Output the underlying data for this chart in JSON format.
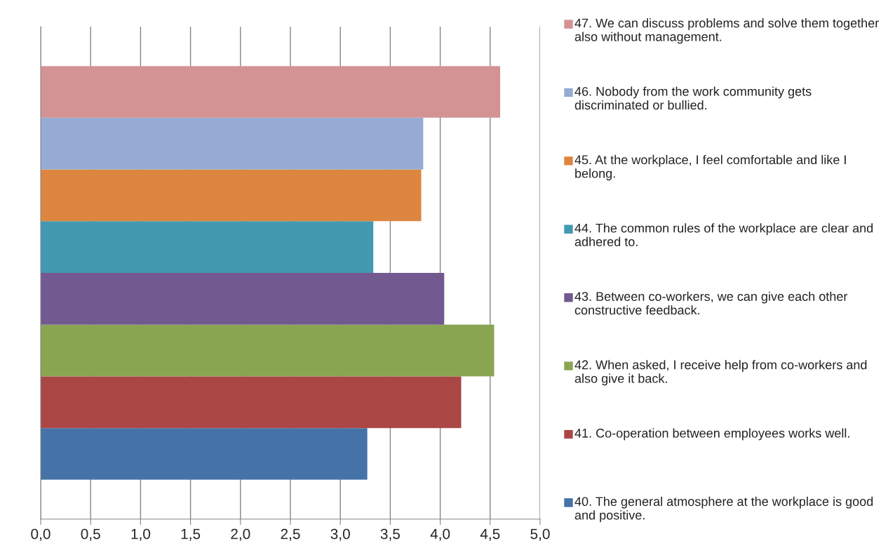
{
  "chart_data": {
    "type": "bar",
    "orientation": "horizontal",
    "categories": [
      null
    ],
    "series": [
      {
        "name": "40. The general atmosphere at the workplace is good and positive.",
        "color": "#4573a7",
        "values": [
          3.27
        ]
      },
      {
        "name": "41. Co-operation between employees works well.",
        "color": "#aa4745",
        "values": [
          4.21
        ]
      },
      {
        "name": "42. When asked, I receive help from co-workers and also give it back.",
        "color": "#89a552",
        "values": [
          4.54
        ]
      },
      {
        "name": "43. Between co-workers, we can give each other constructive feedback.",
        "color": "#72598f",
        "values": [
          4.04
        ]
      },
      {
        "name": "44. The common rules of the workplace are clear and adhered to.",
        "color": "#4299b0",
        "values": [
          3.33
        ]
      },
      {
        "name": "45. At the workplace, I feel comfortable and like I belong.",
        "color": "#dd8640",
        "values": [
          3.81
        ]
      },
      {
        "name": "46. Nobody from the work community gets discriminated or bullied.",
        "color": "#95abd3",
        "values": [
          3.83
        ]
      },
      {
        "name": "47. We can discuss problems and solve them together also without management.",
        "color": "#d39393",
        "values": [
          4.6
        ]
      }
    ],
    "xlim": [
      0,
      5
    ],
    "xticks": [
      {
        "value": 0,
        "label": "0,0"
      },
      {
        "value": 0.5,
        "label": "0,5"
      },
      {
        "value": 1,
        "label": "1,0"
      },
      {
        "value": 1.5,
        "label": "1,5"
      },
      {
        "value": 2,
        "label": "2,0"
      },
      {
        "value": 2.5,
        "label": "2,5"
      },
      {
        "value": 3,
        "label": "3,0"
      },
      {
        "value": 3.5,
        "label": "3,5"
      },
      {
        "value": 4,
        "label": "4,0"
      },
      {
        "value": 4.5,
        "label": "4,5"
      },
      {
        "value": 5,
        "label": "5,0"
      }
    ],
    "grid": "x",
    "legend": "right",
    "tick_labels": "x"
  }
}
